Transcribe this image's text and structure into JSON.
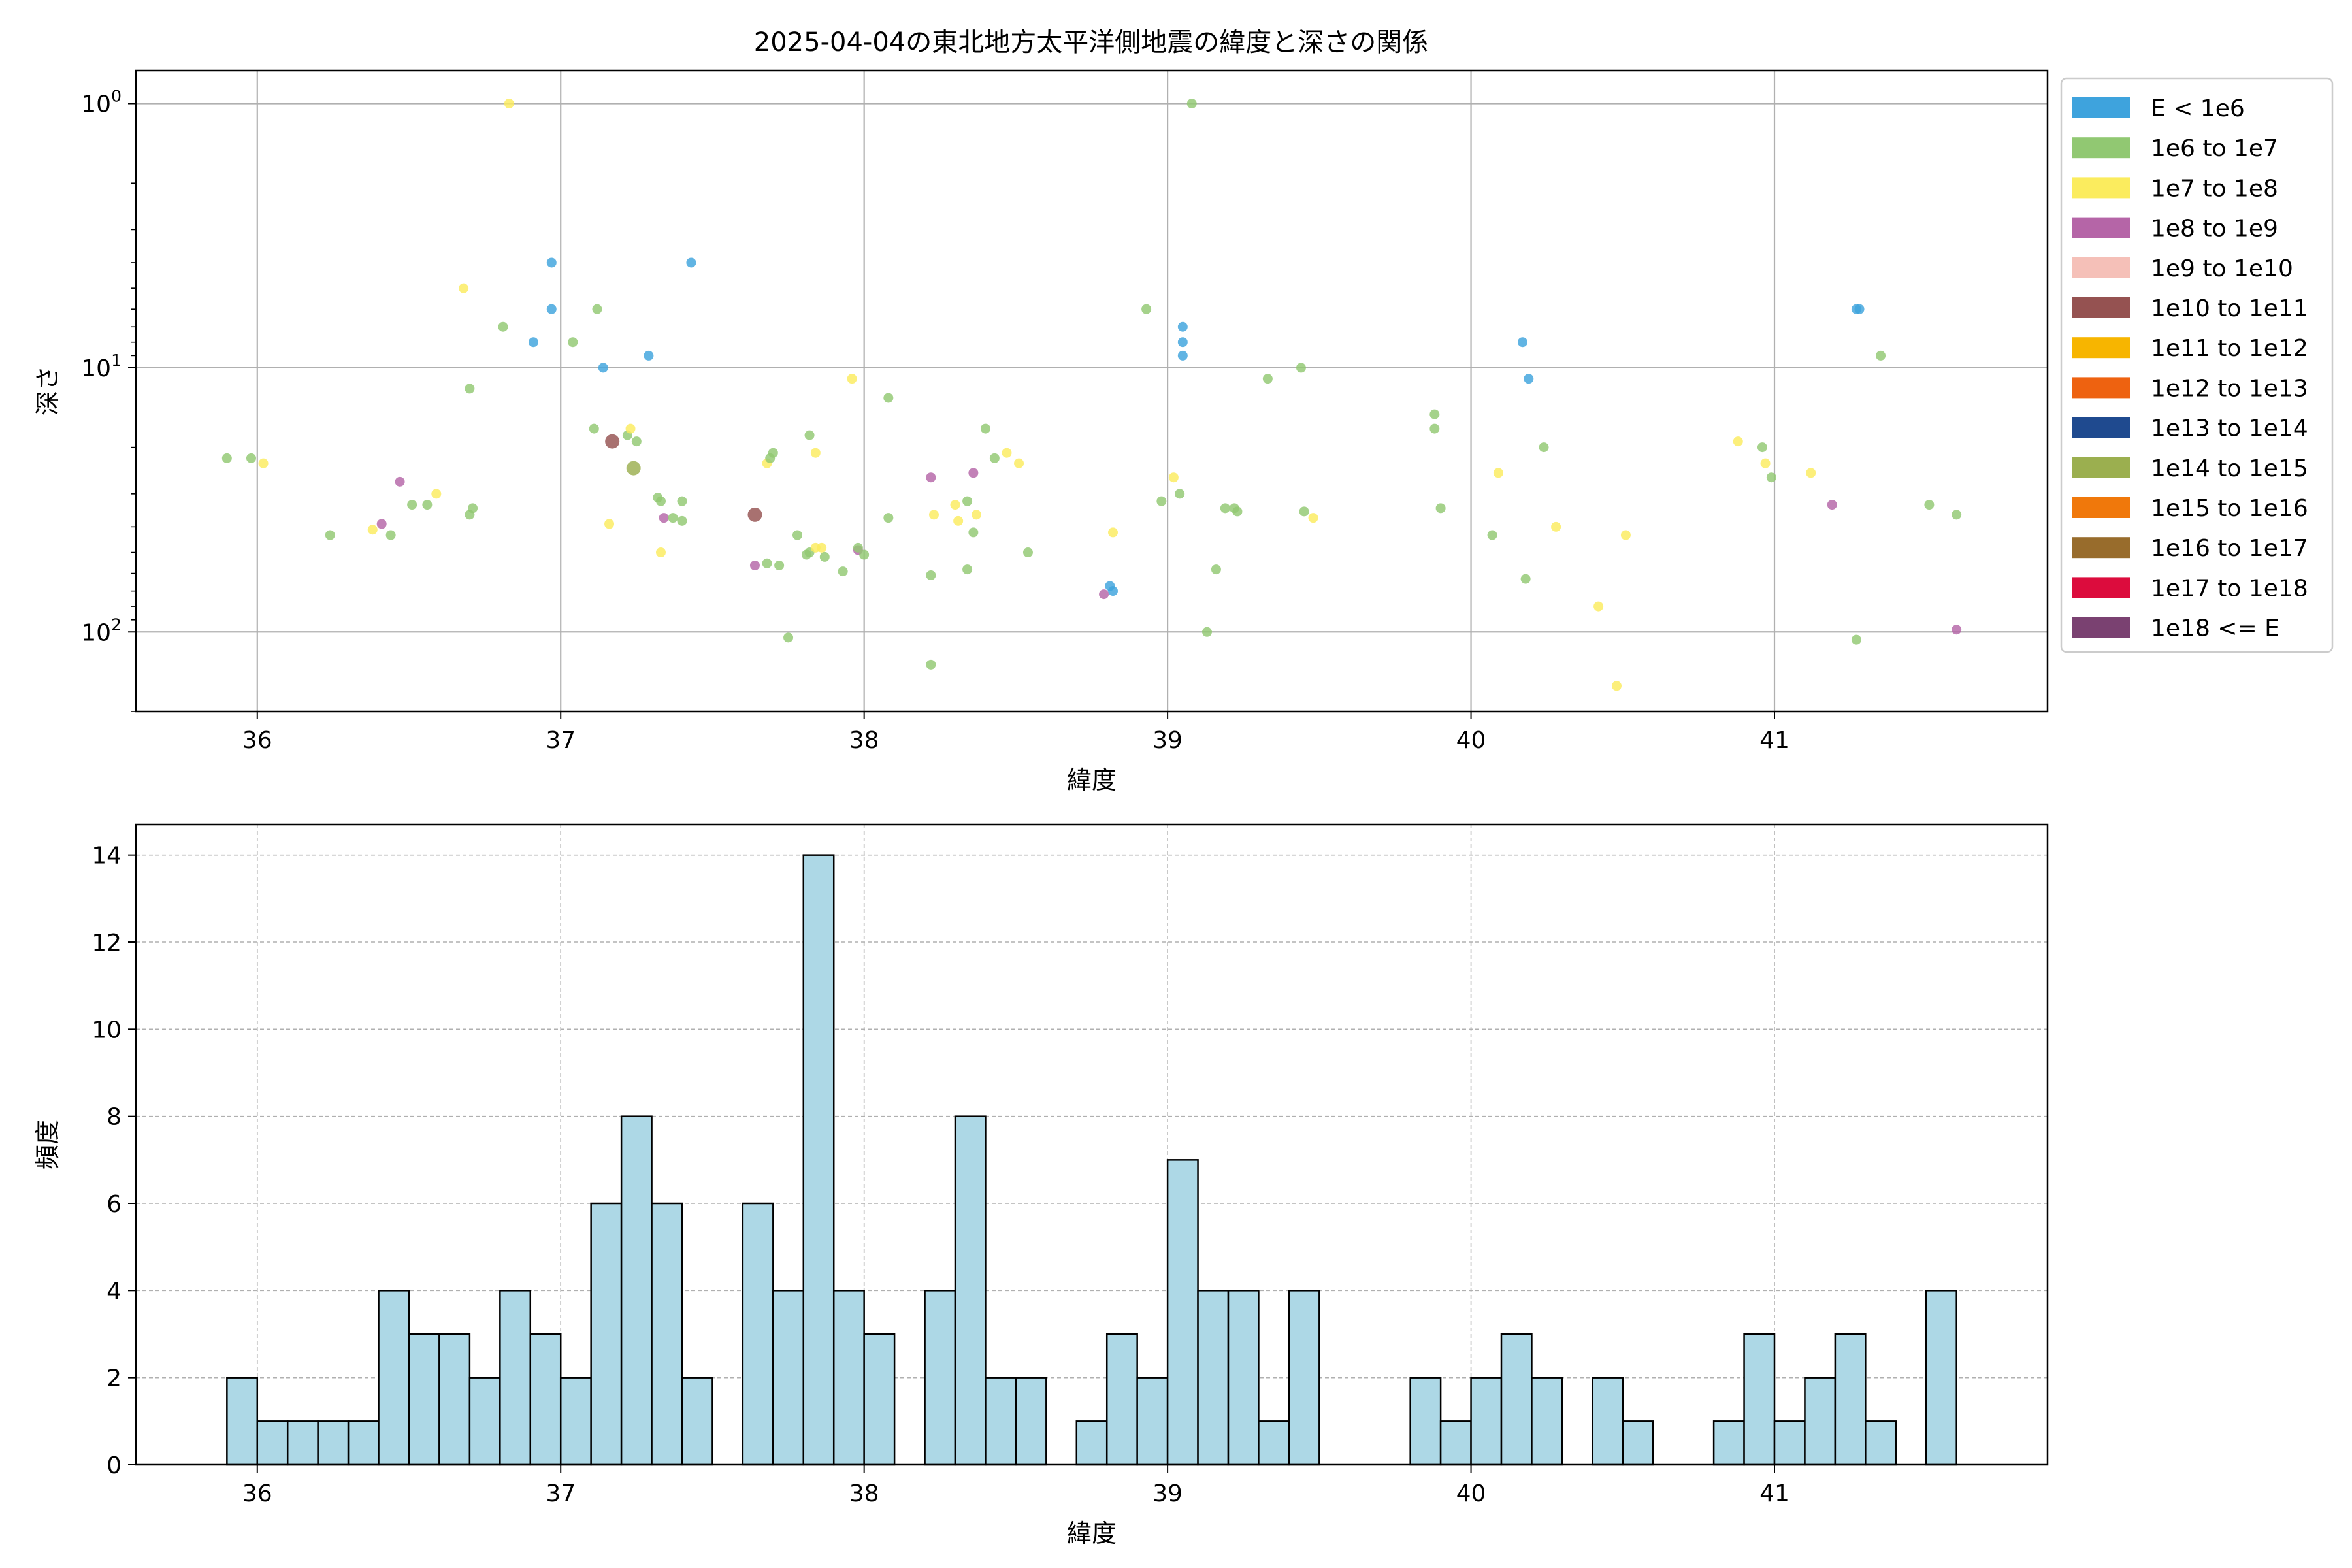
{
  "chart_data": [
    {
      "type": "scatter",
      "title": "2025-04-04の東北地方太平洋側地震の緯度と深さの関係",
      "xlabel": "緯度",
      "ylabel": "深さ",
      "xlim": [
        35.6,
        41.9
      ],
      "ylim": [
        200,
        0.75
      ],
      "y_scale": "log",
      "y_inverted": true,
      "x_ticks": [
        "36",
        "37",
        "38",
        "39",
        "40",
        "41"
      ],
      "y_ticks": [
        {
          "value": 1,
          "base": "10",
          "exp": "0"
        },
        {
          "value": 10,
          "base": "10",
          "exp": "1"
        },
        {
          "value": 100,
          "base": "10",
          "exp": "2"
        }
      ],
      "grid": true,
      "legend_position": "outside right",
      "legend": [
        {
          "label": "E < 1e6",
          "color": "#3EA3DD"
        },
        {
          "label": "1e6 to 1e7",
          "color": "#91C872"
        },
        {
          "label": "1e7 to 1e8",
          "color": "#FBEC5E"
        },
        {
          "label": "1e8 to 1e9",
          "color": "#B565A7"
        },
        {
          "label": "1e9 to 1e10",
          "color": "#F5C0B8"
        },
        {
          "label": "1e10 to 1e11",
          "color": "#955251"
        },
        {
          "label": "1e11 to 1e12",
          "color": "#F7B500"
        },
        {
          "label": "1e12 to 1e13",
          "color": "#EE6210"
        },
        {
          "label": "1e13 to 1e14",
          "color": "#1F4A8F"
        },
        {
          "label": "1e14 to 1e15",
          "color": "#9BAF4F"
        },
        {
          "label": "1e15 to 1e16",
          "color": "#F0780B"
        },
        {
          "label": "1e16 to 1e17",
          "color": "#986C2C"
        },
        {
          "label": "1e17 to 1e18",
          "color": "#DC0C3D"
        },
        {
          "label": "1e18 <= E",
          "color": "#7A4171"
        }
      ],
      "points": [
        {
          "x": 36.97,
          "y": 4,
          "c": 0
        },
        {
          "x": 36.97,
          "y": 6,
          "c": 0
        },
        {
          "x": 36.91,
          "y": 8,
          "c": 0
        },
        {
          "x": 37.14,
          "y": 10,
          "c": 0
        },
        {
          "x": 37.29,
          "y": 9,
          "c": 0
        },
        {
          "x": 37.43,
          "y": 4,
          "c": 0
        },
        {
          "x": 39.05,
          "y": 7,
          "c": 0
        },
        {
          "x": 39.05,
          "y": 8,
          "c": 0
        },
        {
          "x": 39.05,
          "y": 9,
          "c": 0
        },
        {
          "x": 40.17,
          "y": 8,
          "c": 0
        },
        {
          "x": 40.19,
          "y": 11,
          "c": 0
        },
        {
          "x": 41.27,
          "y": 6,
          "c": 0
        },
        {
          "x": 41.28,
          "y": 6,
          "c": 0
        },
        {
          "x": 38.81,
          "y": 67,
          "c": 0
        },
        {
          "x": 38.82,
          "y": 70,
          "c": 0
        },
        {
          "x": 36.68,
          "y": 5,
          "c": 2
        },
        {
          "x": 36.83,
          "y": 1,
          "c": 2
        },
        {
          "x": 39.08,
          "y": 1,
          "c": 1
        },
        {
          "x": 36.81,
          "y": 7,
          "c": 1
        },
        {
          "x": 37.04,
          "y": 8,
          "c": 1
        },
        {
          "x": 37.12,
          "y": 6,
          "c": 1
        },
        {
          "x": 38.93,
          "y": 6,
          "c": 1
        },
        {
          "x": 36.7,
          "y": 12,
          "c": 1
        },
        {
          "x": 39.33,
          "y": 11,
          "c": 1
        },
        {
          "x": 39.44,
          "y": 10,
          "c": 1
        },
        {
          "x": 41.35,
          "y": 9,
          "c": 1
        },
        {
          "x": 37.96,
          "y": 11,
          "c": 2
        },
        {
          "x": 38.08,
          "y": 13,
          "c": 1
        },
        {
          "x": 35.9,
          "y": 22,
          "c": 1
        },
        {
          "x": 35.98,
          "y": 22,
          "c": 1
        },
        {
          "x": 36.02,
          "y": 23,
          "c": 2
        },
        {
          "x": 36.24,
          "y": 43,
          "c": 1
        },
        {
          "x": 36.38,
          "y": 41,
          "c": 2
        },
        {
          "x": 36.41,
          "y": 39,
          "c": 3
        },
        {
          "x": 36.44,
          "y": 43,
          "c": 1
        },
        {
          "x": 36.47,
          "y": 27,
          "c": 3
        },
        {
          "x": 36.51,
          "y": 33,
          "c": 1
        },
        {
          "x": 36.56,
          "y": 33,
          "c": 1
        },
        {
          "x": 36.59,
          "y": 30,
          "c": 2
        },
        {
          "x": 36.7,
          "y": 36,
          "c": 1
        },
        {
          "x": 36.71,
          "y": 34,
          "c": 1
        },
        {
          "x": 37.11,
          "y": 17,
          "c": 1
        },
        {
          "x": 37.17,
          "y": 19,
          "c": 5
        },
        {
          "x": 37.16,
          "y": 39,
          "c": 2
        },
        {
          "x": 37.22,
          "y": 18,
          "c": 1
        },
        {
          "x": 37.23,
          "y": 17,
          "c": 2
        },
        {
          "x": 37.25,
          "y": 19,
          "c": 1
        },
        {
          "x": 37.24,
          "y": 24,
          "c": 9
        },
        {
          "x": 37.32,
          "y": 31,
          "c": 1
        },
        {
          "x": 37.33,
          "y": 32,
          "c": 1
        },
        {
          "x": 37.34,
          "y": 37,
          "c": 3
        },
        {
          "x": 37.37,
          "y": 37,
          "c": 1
        },
        {
          "x": 37.4,
          "y": 32,
          "c": 1
        },
        {
          "x": 37.4,
          "y": 38,
          "c": 1
        },
        {
          "x": 37.33,
          "y": 50,
          "c": 2
        },
        {
          "x": 37.64,
          "y": 36,
          "c": 5
        },
        {
          "x": 37.64,
          "y": 56,
          "c": 3
        },
        {
          "x": 37.68,
          "y": 55,
          "c": 1
        },
        {
          "x": 37.72,
          "y": 56,
          "c": 1
        },
        {
          "x": 37.68,
          "y": 23,
          "c": 2
        },
        {
          "x": 37.69,
          "y": 22,
          "c": 1
        },
        {
          "x": 37.7,
          "y": 21,
          "c": 1
        },
        {
          "x": 37.78,
          "y": 43,
          "c": 1
        },
        {
          "x": 37.81,
          "y": 51,
          "c": 1
        },
        {
          "x": 37.82,
          "y": 50,
          "c": 1
        },
        {
          "x": 37.82,
          "y": 18,
          "c": 1
        },
        {
          "x": 37.84,
          "y": 21,
          "c": 2
        },
        {
          "x": 37.84,
          "y": 48,
          "c": 2
        },
        {
          "x": 37.86,
          "y": 48,
          "c": 2
        },
        {
          "x": 37.87,
          "y": 52,
          "c": 1
        },
        {
          "x": 37.93,
          "y": 59,
          "c": 1
        },
        {
          "x": 37.98,
          "y": 49,
          "c": 3
        },
        {
          "x": 37.98,
          "y": 48,
          "c": 1
        },
        {
          "x": 38.0,
          "y": 51,
          "c": 1
        },
        {
          "x": 37.75,
          "y": 105,
          "c": 1
        },
        {
          "x": 38.08,
          "y": 37,
          "c": 1
        },
        {
          "x": 38.22,
          "y": 26,
          "c": 3
        },
        {
          "x": 38.23,
          "y": 36,
          "c": 2
        },
        {
          "x": 38.22,
          "y": 61,
          "c": 1
        },
        {
          "x": 38.22,
          "y": 133,
          "c": 1
        },
        {
          "x": 38.3,
          "y": 33,
          "c": 2
        },
        {
          "x": 38.31,
          "y": 38,
          "c": 2
        },
        {
          "x": 38.34,
          "y": 32,
          "c": 1
        },
        {
          "x": 38.36,
          "y": 25,
          "c": 3
        },
        {
          "x": 38.37,
          "y": 36,
          "c": 2
        },
        {
          "x": 38.36,
          "y": 42,
          "c": 1
        },
        {
          "x": 38.34,
          "y": 58,
          "c": 1
        },
        {
          "x": 38.4,
          "y": 17,
          "c": 1
        },
        {
          "x": 38.43,
          "y": 22,
          "c": 1
        },
        {
          "x": 38.47,
          "y": 21,
          "c": 2
        },
        {
          "x": 38.51,
          "y": 23,
          "c": 2
        },
        {
          "x": 38.54,
          "y": 50,
          "c": 1
        },
        {
          "x": 38.82,
          "y": 42,
          "c": 2
        },
        {
          "x": 38.79,
          "y": 72,
          "c": 3
        },
        {
          "x": 38.98,
          "y": 32,
          "c": 1
        },
        {
          "x": 39.02,
          "y": 26,
          "c": 2
        },
        {
          "x": 39.04,
          "y": 30,
          "c": 1
        },
        {
          "x": 39.13,
          "y": 100,
          "c": 1
        },
        {
          "x": 39.16,
          "y": 58,
          "c": 1
        },
        {
          "x": 39.19,
          "y": 34,
          "c": 1
        },
        {
          "x": 39.22,
          "y": 34,
          "c": 1
        },
        {
          "x": 39.23,
          "y": 35,
          "c": 1
        },
        {
          "x": 39.45,
          "y": 35,
          "c": 1
        },
        {
          "x": 39.48,
          "y": 37,
          "c": 2
        },
        {
          "x": 39.88,
          "y": 15,
          "c": 1
        },
        {
          "x": 39.88,
          "y": 17,
          "c": 1
        },
        {
          "x": 39.9,
          "y": 34,
          "c": 1
        },
        {
          "x": 40.09,
          "y": 25,
          "c": 2
        },
        {
          "x": 40.07,
          "y": 43,
          "c": 1
        },
        {
          "x": 40.18,
          "y": 63,
          "c": 1
        },
        {
          "x": 40.24,
          "y": 20,
          "c": 1
        },
        {
          "x": 40.28,
          "y": 40,
          "c": 2
        },
        {
          "x": 40.42,
          "y": 80,
          "c": 2
        },
        {
          "x": 40.48,
          "y": 160,
          "c": 2
        },
        {
          "x": 40.51,
          "y": 43,
          "c": 2
        },
        {
          "x": 40.88,
          "y": 19,
          "c": 2
        },
        {
          "x": 40.96,
          "y": 20,
          "c": 1
        },
        {
          "x": 40.97,
          "y": 23,
          "c": 2
        },
        {
          "x": 40.99,
          "y": 26,
          "c": 1
        },
        {
          "x": 41.12,
          "y": 25,
          "c": 2
        },
        {
          "x": 41.19,
          "y": 33,
          "c": 3
        },
        {
          "x": 41.27,
          "y": 107,
          "c": 1
        },
        {
          "x": 41.51,
          "y": 33,
          "c": 1
        },
        {
          "x": 41.6,
          "y": 36,
          "c": 1
        },
        {
          "x": 41.6,
          "y": 98,
          "c": 3
        }
      ]
    },
    {
      "type": "bar",
      "xlabel": "緯度",
      "ylabel": "頻度",
      "xlim": [
        35.6,
        41.9
      ],
      "ylim": [
        0,
        14.7
      ],
      "x_ticks": [
        "36",
        "37",
        "38",
        "39",
        "40",
        "41"
      ],
      "y_ticks": [
        "0",
        "2",
        "4",
        "6",
        "8",
        "10",
        "12",
        "14"
      ],
      "grid": true,
      "bar_color": "#ADD8E6",
      "edge_color": "#000000",
      "bin_start": 35.9,
      "bin_width": 0.1,
      "values": [
        2,
        1,
        1,
        1,
        1,
        4,
        3,
        3,
        2,
        4,
        3,
        2,
        6,
        8,
        6,
        2,
        0,
        6,
        4,
        14,
        4,
        3,
        0,
        4,
        8,
        2,
        2,
        0,
        1,
        3,
        2,
        7,
        4,
        4,
        1,
        4,
        0,
        0,
        0,
        2,
        1,
        2,
        3,
        2,
        0,
        2,
        1,
        0,
        0,
        1,
        3,
        1,
        2,
        3,
        1,
        0,
        4
      ]
    }
  ]
}
